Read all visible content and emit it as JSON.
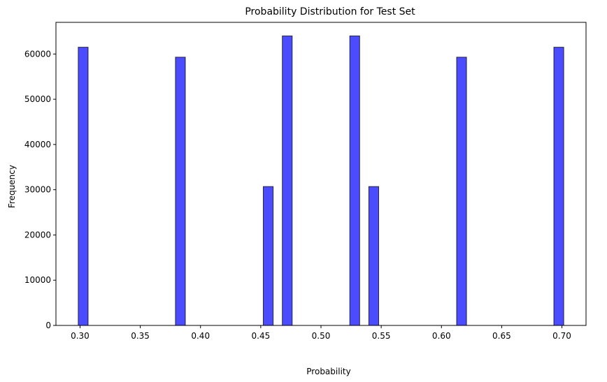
{
  "chart_data": {
    "type": "bar",
    "title": "Probability Distribution for Test Set",
    "xlabel": "Probability",
    "ylabel": "Frequency",
    "xlim": [
      0.28,
      0.72
    ],
    "ylim": [
      0,
      67000
    ],
    "bar_color": "#0000ff",
    "bar_opacity": 0.7,
    "edge_color": "#000000",
    "bin_width": 0.0082,
    "x_ticks": [
      0.3,
      0.35,
      0.4,
      0.45,
      0.5,
      0.55,
      0.6,
      0.65,
      0.7
    ],
    "x_tick_labels": [
      "0.30",
      "0.35",
      "0.40",
      "0.45",
      "0.50",
      "0.55",
      "0.60",
      "0.65",
      "0.70"
    ],
    "y_ticks": [
      0,
      10000,
      20000,
      30000,
      40000,
      50000,
      60000
    ],
    "y_tick_labels": [
      "0",
      "10000",
      "20000",
      "30000",
      "40000",
      "50000",
      "60000"
    ],
    "bars": [
      {
        "x": 0.3026,
        "value": 61500
      },
      {
        "x": 0.3833,
        "value": 59300
      },
      {
        "x": 0.4562,
        "value": 30700
      },
      {
        "x": 0.472,
        "value": 64000
      },
      {
        "x": 0.528,
        "value": 64000
      },
      {
        "x": 0.5438,
        "value": 30700
      },
      {
        "x": 0.6167,
        "value": 59300
      },
      {
        "x": 0.6974,
        "value": 61500
      }
    ]
  }
}
